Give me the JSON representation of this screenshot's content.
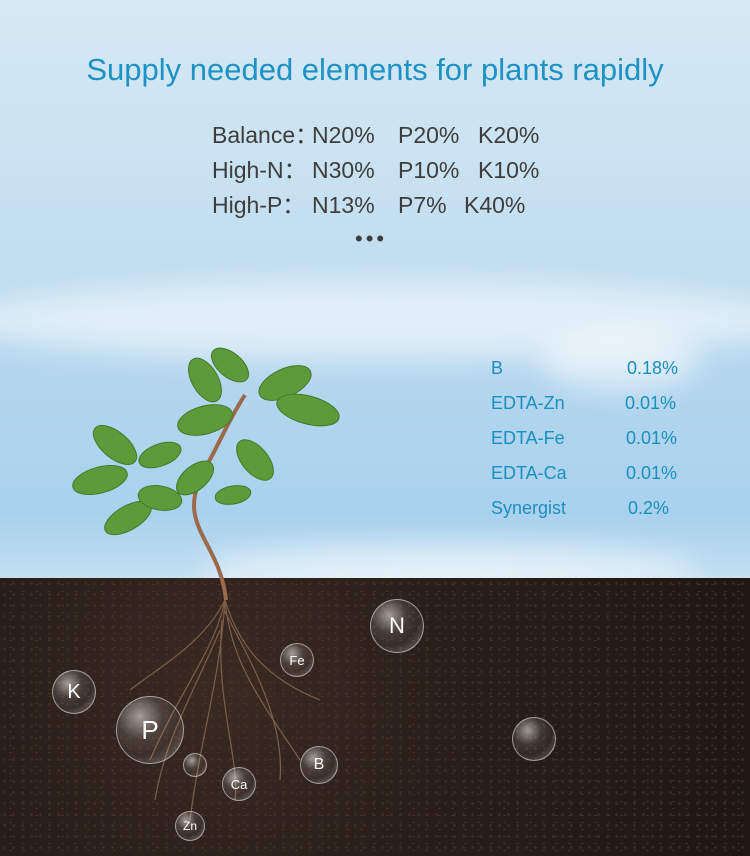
{
  "title": "Supply needed elements for plants rapidly",
  "formulas": [
    {
      "label": "Balance：",
      "n": "N20%",
      "p": "P20%",
      "k": "K20%"
    },
    {
      "label": "High-N：",
      "n": "N30%",
      "p": "P10%",
      "k": "K10%"
    },
    {
      "label": "High-P：",
      "n": "N13%",
      "p": "P7%",
      "k": "K40%"
    }
  ],
  "more": "•••",
  "trace_elements": [
    {
      "name": "B",
      "value": "0.18%"
    },
    {
      "name": "EDTA-Zn",
      "value": "0.01%"
    },
    {
      "name": "EDTA-Fe",
      "value": "0.01%"
    },
    {
      "name": "EDTA-Ca",
      "value": "0.01%"
    },
    {
      "name": "Synergist",
      "value": "0.2%"
    }
  ],
  "bubbles": [
    "N",
    "Fe",
    "K",
    "P",
    "B",
    "Ca",
    "Zn"
  ],
  "colors": {
    "title": "#1e92c4",
    "formula_text": "#3d3d3d",
    "element_text": "#1b8fbd",
    "soil": "#2a1f1a"
  }
}
